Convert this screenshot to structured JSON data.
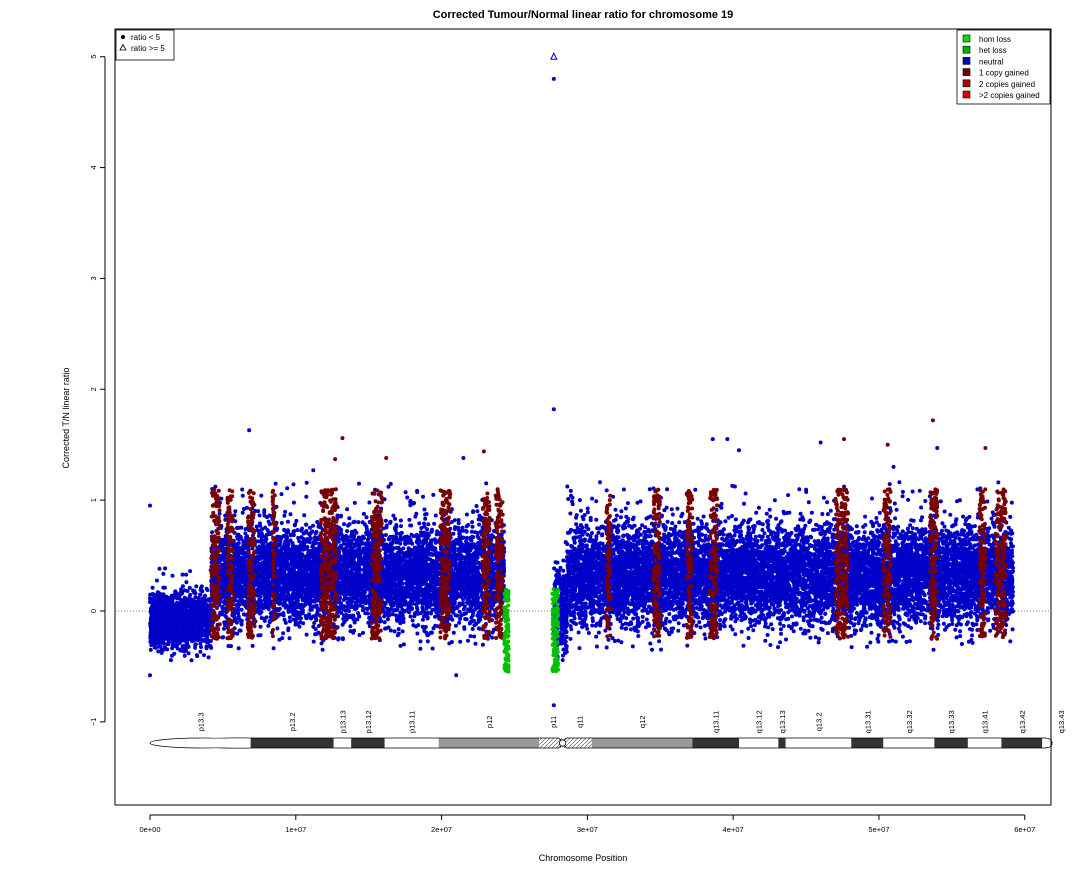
{
  "chart_data": {
    "type": "scatter",
    "title": "Corrected Tumour/Normal linear ratio for chromosome  19",
    "xlabel": "Chromosome Position",
    "ylabel": "Corrected T/N linear ratio",
    "xlim": [
      -2400000,
      61800000
    ],
    "ylim": [
      -1.75,
      5.25
    ],
    "x_ticks": [
      0,
      10000000,
      20000000,
      30000000,
      40000000,
      50000000,
      60000000
    ],
    "x_tick_labels": [
      "0e+00",
      "1e+07",
      "2e+07",
      "3e+07",
      "4e+07",
      "5e+07",
      "6e+07"
    ],
    "y_ticks": [
      -1,
      0,
      1,
      2,
      3,
      4,
      5
    ],
    "y_tick_labels": [
      "−1",
      "0",
      "1",
      "2",
      "3",
      "4",
      "5"
    ],
    "reference_line_y": 0,
    "grid": false,
    "shape_legend": {
      "position": "top-left",
      "entries": [
        {
          "label": "ratio < 5",
          "shape": "circle"
        },
        {
          "label": "ratio >= 5",
          "shape": "triangle"
        }
      ]
    },
    "legend": {
      "position": "top-right",
      "entries": [
        {
          "label": "hom loss",
          "color": "#00e000"
        },
        {
          "label": "het loss",
          "color": "#00b000"
        },
        {
          "label": "neutral",
          "color": "#0000c8"
        },
        {
          "label": "1 copy gained",
          "color": "#7a0000"
        },
        {
          "label": "2 copies gained",
          "color": "#b00000"
        },
        {
          "label": ">2 copies gained",
          "color": "#e00000"
        }
      ]
    },
    "series": [
      {
        "name": "neutral",
        "color": "#0000c8",
        "bands": [
          {
            "x_start": 0,
            "x_end": 4200000,
            "y_low": -0.45,
            "y_high": 0.3
          },
          {
            "x_start": 4200000,
            "x_end": 24300000,
            "y_low": -0.35,
            "y_high": 1.0
          },
          {
            "x_start": 27700000,
            "x_end": 28600000,
            "y_low": -0.6,
            "y_high": 0.6
          },
          {
            "x_start": 28600000,
            "x_end": 59200000,
            "y_low": -0.35,
            "y_high": 1.0
          }
        ],
        "outliers": [
          {
            "x": 0,
            "y": 0.95
          },
          {
            "x": 6800000,
            "y": 1.63
          },
          {
            "x": 11200000,
            "y": 1.27
          },
          {
            "x": 21500000,
            "y": 1.38
          },
          {
            "x": 27700000,
            "y": 4.8
          },
          {
            "x": 27700000,
            "y": 1.82
          },
          {
            "x": 38600000,
            "y": 1.55
          },
          {
            "x": 39600000,
            "y": 1.55
          },
          {
            "x": 40400000,
            "y": 1.45
          },
          {
            "x": 46000000,
            "y": 1.52
          },
          {
            "x": 51000000,
            "y": 1.3
          },
          {
            "x": 54000000,
            "y": 1.47
          },
          {
            "x": 27700000,
            "y": -0.85
          },
          {
            "x": 21000000,
            "y": -0.58
          },
          {
            "x": 0,
            "y": -0.58
          }
        ]
      },
      {
        "name": "1 copy gained",
        "color": "#7a0000",
        "segments": [
          {
            "x_start": 4200000,
            "x_end": 4800000
          },
          {
            "x_start": 5300000,
            "x_end": 5700000
          },
          {
            "x_start": 6700000,
            "x_end": 7200000
          },
          {
            "x_start": 8400000,
            "x_end": 8600000
          },
          {
            "x_start": 11700000,
            "x_end": 12800000
          },
          {
            "x_start": 15200000,
            "x_end": 15900000
          },
          {
            "x_start": 19900000,
            "x_end": 20600000
          },
          {
            "x_start": 22800000,
            "x_end": 23300000
          },
          {
            "x_start": 23700000,
            "x_end": 24200000
          },
          {
            "x_start": 31300000,
            "x_end": 31600000
          },
          {
            "x_start": 34500000,
            "x_end": 35000000
          },
          {
            "x_start": 36800000,
            "x_end": 37200000
          },
          {
            "x_start": 38400000,
            "x_end": 38900000
          },
          {
            "x_start": 47000000,
            "x_end": 47900000
          },
          {
            "x_start": 50300000,
            "x_end": 50800000
          },
          {
            "x_start": 53500000,
            "x_end": 54000000
          },
          {
            "x_start": 56900000,
            "x_end": 57300000
          },
          {
            "x_start": 58000000,
            "x_end": 58700000
          }
        ],
        "y_range": [
          -0.25,
          1.1
        ],
        "outliers": [
          {
            "x": 13200000,
            "y": 1.56
          },
          {
            "x": 12700000,
            "y": 1.37
          },
          {
            "x": 16200000,
            "y": 1.38
          },
          {
            "x": 22900000,
            "y": 1.44
          },
          {
            "x": 47600000,
            "y": 1.55
          },
          {
            "x": 50600000,
            "y": 1.5
          },
          {
            "x": 53700000,
            "y": 1.72
          },
          {
            "x": 57300000,
            "y": 1.47
          }
        ]
      },
      {
        "name": "het loss",
        "color": "#00c000",
        "segments": [
          {
            "x_start": 24300000,
            "x_end": 24600000
          },
          {
            "x_start": 27600000,
            "x_end": 28000000
          }
        ],
        "y_range": [
          -0.55,
          0.2
        ]
      },
      {
        "name": "ratio >= 5",
        "color": "#0000c8",
        "shape": "triangle",
        "points": [
          {
            "x": 27700000,
            "y": 5.0
          }
        ]
      }
    ],
    "ideogram": {
      "label_y": -1,
      "bands": [
        {
          "name": "p13.3",
          "start": 0,
          "end": 6900000,
          "stain": "gneg"
        },
        {
          "name": "p13.2",
          "start": 6900000,
          "end": 12600000,
          "stain": "gpos75"
        },
        {
          "name": "p13.13",
          "start": 12600000,
          "end": 13800000,
          "stain": "gneg"
        },
        {
          "name": "p13.12",
          "start": 13800000,
          "end": 16100000,
          "stain": "gpos75"
        },
        {
          "name": "p13.11",
          "start": 16100000,
          "end": 19800000,
          "stain": "gneg"
        },
        {
          "name": "p12",
          "start": 19800000,
          "end": 26700000,
          "stain": "gvar"
        },
        {
          "name": "p11",
          "start": 26700000,
          "end": 28600000,
          "stain": "acen"
        },
        {
          "name": "q11",
          "start": 28600000,
          "end": 30300000,
          "stain": "acen"
        },
        {
          "name": "q12",
          "start": 30300000,
          "end": 37200000,
          "stain": "gvar"
        },
        {
          "name": "q13.11",
          "start": 37200000,
          "end": 40400000,
          "stain": "gpos75"
        },
        {
          "name": "q13.12",
          "start": 40400000,
          "end": 43100000,
          "stain": "gneg"
        },
        {
          "name": "q13.13",
          "start": 43100000,
          "end": 43600000,
          "stain": "gpos75"
        },
        {
          "name": "q13.2",
          "start": 43600000,
          "end": 48100000,
          "stain": "gneg"
        },
        {
          "name": "q13.31",
          "start": 48100000,
          "end": 50300000,
          "stain": "gpos75"
        },
        {
          "name": "q13.32",
          "start": 50300000,
          "end": 53800000,
          "stain": "gneg"
        },
        {
          "name": "q13.33",
          "start": 53800000,
          "end": 56100000,
          "stain": "gpos75"
        },
        {
          "name": "q13.41",
          "start": 56100000,
          "end": 58400000,
          "stain": "gneg"
        },
        {
          "name": "q13.42",
          "start": 58400000,
          "end": 61200000,
          "stain": "gpos75"
        },
        {
          "name": "q13.43",
          "start": 61200000,
          "end": 63800000,
          "stain": "gneg"
        }
      ]
    }
  }
}
